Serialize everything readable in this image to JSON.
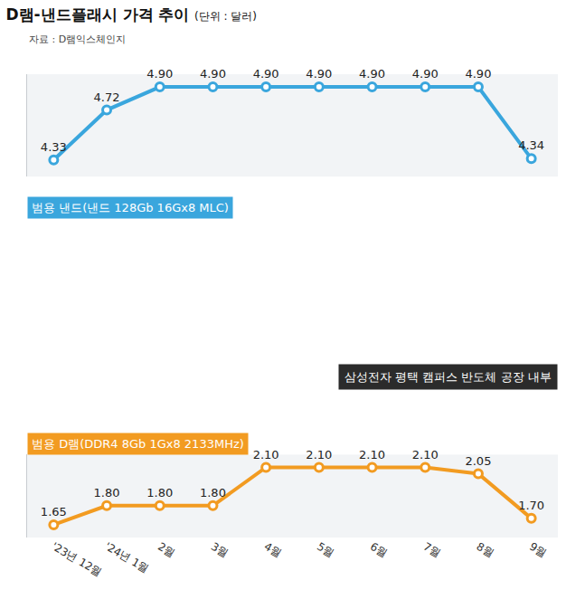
{
  "chart_data": {
    "type": "line",
    "title": "D램-낸드플래시 가격 추이",
    "subtitle": "(단위 : 달러)",
    "annotations": [
      "자료 : D램익스체인지",
      "삼성전자 평택 캠퍼스 반도체 공장 내부"
    ],
    "categories": [
      "'23년 12월",
      "'24년 1월",
      "2월",
      "3월",
      "4월",
      "5월",
      "6월",
      "7월",
      "8월",
      "9월"
    ],
    "series": [
      {
        "name": "범용 낸드(낸드 128Gb 16Gx8 MLC)",
        "color": "#3aa6dd",
        "values": [
          4.33,
          4.72,
          4.9,
          4.9,
          4.9,
          4.9,
          4.9,
          4.9,
          4.9,
          4.34
        ],
        "value_labels": [
          "4.33",
          "4.72",
          "4.90",
          "4.90",
          "4.90",
          "4.90",
          "4.90",
          "4.90",
          "4.90",
          "4.34"
        ]
      },
      {
        "name": "범용 D램(DDR4 8Gb 1Gx8 2133MHz)",
        "color": "#f29b21",
        "axis": "y2",
        "values": [
          1.65,
          1.8,
          1.8,
          1.8,
          2.1,
          2.1,
          2.1,
          2.1,
          2.05,
          1.7
        ],
        "value_labels": [
          "1.65",
          "1.80",
          "1.80",
          "1.80",
          "2.10",
          "2.10",
          "2.10",
          "2.10",
          "2.05",
          "1.70"
        ]
      }
    ],
    "ylim": [
      4.2,
      5.0
    ],
    "y2lim": [
      1.55,
      2.2
    ],
    "data_labels": true,
    "tick_labels": "x",
    "grid": false,
    "marker": "circle"
  }
}
